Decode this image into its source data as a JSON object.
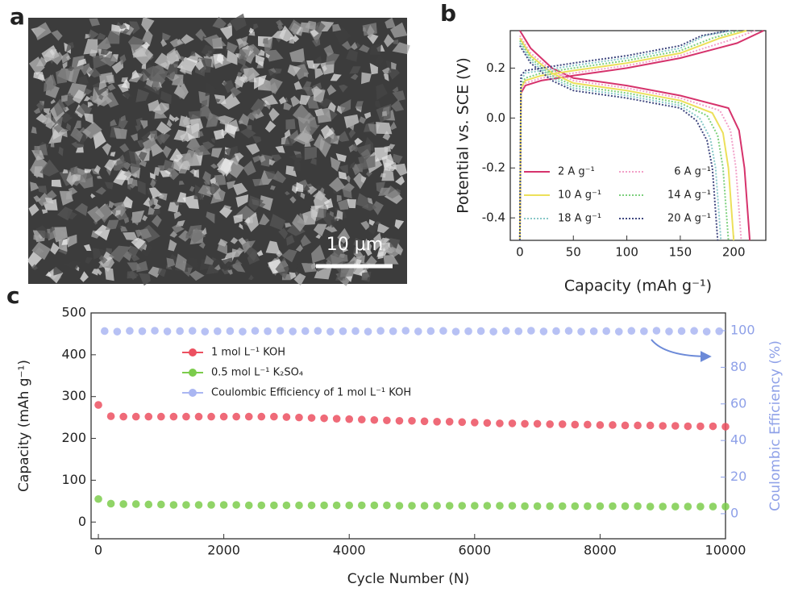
{
  "chart_data": [
    {
      "type": "image",
      "panel_label": "a",
      "scale_bar": "10 μm"
    },
    {
      "type": "line",
      "panel_label": "b",
      "xlabel": "Capacity (mAh g⁻¹)",
      "ylabel": "Potential vs. SCE (V)",
      "xlim": [
        -9,
        230
      ],
      "ylim": [
        -0.49,
        0.35
      ],
      "xticks": [
        0,
        50,
        100,
        150,
        200
      ],
      "yticks": [
        -0.4,
        -0.2,
        {
          "value": 0,
          "label": "0.0"
        },
        0.2
      ],
      "legend": "lower center",
      "series": [
        {
          "name": "2 A g⁻¹",
          "color": "#d6336c",
          "linestyle": "solid",
          "x": [
            0,
            1,
            5,
            20,
            50,
            100,
            150,
            203,
            228,
            null,
            0,
            10,
            30,
            50,
            100,
            150,
            195,
            205,
            210,
            215
          ],
          "values": [
            -0.49,
            0.1,
            0.13,
            0.15,
            0.17,
            0.2,
            0.24,
            0.3,
            0.35,
            null,
            0.35,
            0.28,
            0.2,
            0.16,
            0.13,
            0.09,
            0.04,
            -0.05,
            -0.2,
            -0.49
          ]
        },
        {
          "name": "6 A g⁻¹",
          "color": "#f2a0c8",
          "linestyle": "dotted",
          "x": [
            0,
            1,
            5,
            20,
            50,
            100,
            150,
            195,
            220,
            null,
            0,
            10,
            30,
            50,
            100,
            150,
            187,
            197,
            202,
            207
          ],
          "values": [
            -0.49,
            0.11,
            0.14,
            0.16,
            0.18,
            0.21,
            0.25,
            0.31,
            0.35,
            null,
            0.33,
            0.26,
            0.19,
            0.15,
            0.12,
            0.08,
            0.03,
            -0.05,
            -0.2,
            -0.49
          ]
        },
        {
          "name": "10 A g⁻¹",
          "color": "#ece05a",
          "linestyle": "solid",
          "x": [
            0,
            1,
            5,
            20,
            50,
            100,
            150,
            187,
            212,
            null,
            0,
            10,
            30,
            50,
            100,
            150,
            180,
            190,
            195,
            200
          ],
          "values": [
            -0.49,
            0.12,
            0.15,
            0.17,
            0.19,
            0.22,
            0.26,
            0.32,
            0.35,
            null,
            0.32,
            0.25,
            0.18,
            0.14,
            0.11,
            0.07,
            0.02,
            -0.06,
            -0.2,
            -0.49
          ]
        },
        {
          "name": "14 A g⁻¹",
          "color": "#7ed07e",
          "linestyle": "dotted",
          "x": [
            0,
            1,
            5,
            20,
            50,
            100,
            150,
            180,
            205,
            null,
            0,
            10,
            30,
            50,
            100,
            150,
            175,
            185,
            190,
            195
          ],
          "values": [
            -0.49,
            0.13,
            0.16,
            0.18,
            0.2,
            0.23,
            0.27,
            0.32,
            0.35,
            null,
            0.31,
            0.24,
            0.17,
            0.13,
            0.1,
            0.06,
            0.01,
            -0.07,
            -0.2,
            -0.49
          ]
        },
        {
          "name": "18 A g⁻¹",
          "color": "#88c8c8",
          "linestyle": "dotted",
          "x": [
            0,
            1,
            5,
            20,
            50,
            100,
            150,
            173,
            198,
            null,
            0,
            10,
            30,
            50,
            100,
            150,
            168,
            178,
            183,
            188
          ],
          "values": [
            -0.49,
            0.15,
            0.18,
            0.19,
            0.21,
            0.24,
            0.28,
            0.33,
            0.35,
            null,
            0.3,
            0.23,
            0.16,
            0.12,
            0.09,
            0.05,
            0.0,
            -0.08,
            -0.2,
            -0.49
          ]
        },
        {
          "name": "20 A g⁻¹",
          "color": "#404880",
          "linestyle": "dotted",
          "x": [
            0,
            1,
            5,
            20,
            50,
            100,
            150,
            170,
            195,
            null,
            0,
            10,
            30,
            50,
            100,
            150,
            165,
            175,
            180,
            185
          ],
          "values": [
            -0.49,
            0.17,
            0.19,
            0.2,
            0.22,
            0.25,
            0.29,
            0.33,
            0.35,
            null,
            0.29,
            0.22,
            0.15,
            0.11,
            0.08,
            0.04,
            -0.01,
            -0.09,
            -0.2,
            -0.49
          ]
        }
      ]
    },
    {
      "type": "scatter",
      "panel_label": "c",
      "xlabel": "Cycle Number (N)",
      "ylabel": "Capacity (mAh g⁻¹)",
      "y2label": "Coulombic Efficiency (%)",
      "xlim": [
        -116,
        10000
      ],
      "ylim": [
        -40,
        500
      ],
      "y2lim": [
        -13.7,
        109.7
      ],
      "xticks": [
        0,
        2000,
        4000,
        6000,
        8000,
        10000
      ],
      "yticks": [
        0,
        100,
        200,
        300,
        400,
        500
      ],
      "y2ticks": [
        0,
        20,
        40,
        60,
        80,
        100
      ],
      "y2_color": "#8ea0e8",
      "legend": "upper left",
      "series": [
        {
          "name": "1 mol L⁻¹ KOH",
          "color": "#ec5060",
          "x": [
            0,
            200,
            400,
            600,
            800,
            1000,
            1200,
            1400,
            1600,
            1800,
            2000,
            2200,
            2400,
            2600,
            2800,
            3000,
            3200,
            3400,
            3600,
            3800,
            4000,
            4200,
            4400,
            4600,
            4800,
            5000,
            5200,
            5400,
            5600,
            5800,
            6000,
            6200,
            6400,
            6600,
            6800,
            7000,
            7200,
            7400,
            7600,
            7800,
            8000,
            8200,
            8400,
            8600,
            8800,
            9000,
            9200,
            9400,
            9600,
            9800,
            10000
          ],
          "values": [
            280,
            253,
            252,
            252,
            252,
            252,
            252,
            252,
            252,
            252,
            252,
            252,
            252,
            252,
            252,
            251,
            250,
            249,
            248,
            247,
            246,
            245,
            244,
            243,
            242,
            242,
            241,
            240,
            240,
            239,
            238,
            237,
            236,
            236,
            235,
            235,
            234,
            234,
            233,
            233,
            232,
            232,
            231,
            231,
            231,
            230,
            230,
            229,
            229,
            229,
            228
          ]
        },
        {
          "name": "0.5 mol L⁻¹ K₂SO₄",
          "color": "#7ccc4c",
          "x": [
            0,
            200,
            400,
            600,
            800,
            1000,
            1200,
            1400,
            1600,
            1800,
            2000,
            2200,
            2400,
            2600,
            2800,
            3000,
            3200,
            3400,
            3600,
            3800,
            4000,
            4200,
            4400,
            4600,
            4800,
            5000,
            5200,
            5400,
            5600,
            5800,
            6000,
            6200,
            6400,
            6600,
            6800,
            7000,
            7200,
            7400,
            7600,
            7800,
            8000,
            8200,
            8400,
            8600,
            8800,
            9000,
            9200,
            9400,
            9600,
            9800,
            10000
          ],
          "values": [
            55,
            44,
            43,
            43,
            42,
            42,
            41,
            41,
            41,
            41,
            41,
            41,
            40,
            40,
            40,
            40,
            40,
            40,
            40,
            40,
            40,
            40,
            40,
            40,
            39,
            39,
            39,
            39,
            39,
            39,
            39,
            39,
            39,
            39,
            38,
            38,
            38,
            38,
            38,
            38,
            38,
            38,
            38,
            38,
            37,
            37,
            37,
            37,
            37,
            37,
            37
          ]
        },
        {
          "name": "Coulombic Efficiency of 1 mol L⁻¹ KOH",
          "color": "#aab6f2",
          "axis": "y2",
          "x": [
            100,
            300,
            500,
            700,
            900,
            1100,
            1300,
            1500,
            1700,
            1900,
            2100,
            2300,
            2500,
            2700,
            2900,
            3100,
            3300,
            3500,
            3700,
            3900,
            4100,
            4300,
            4500,
            4700,
            4900,
            5100,
            5300,
            5500,
            5700,
            5900,
            6100,
            6300,
            6500,
            6700,
            6900,
            7100,
            7300,
            7500,
            7700,
            7900,
            8100,
            8300,
            8500,
            8700,
            8900,
            9100,
            9300,
            9500,
            9700,
            9900
          ],
          "values": [
            99.8,
            99.5,
            99.9,
            99.7,
            100,
            99.6,
            99.8,
            99.9,
            99.5,
            99.7,
            99.8,
            99.5,
            99.9,
            99.7,
            100,
            99.6,
            99.8,
            99.9,
            99.5,
            99.7,
            99.8,
            99.5,
            99.9,
            99.7,
            100,
            99.6,
            99.8,
            99.9,
            99.5,
            99.7,
            99.8,
            99.5,
            99.9,
            99.7,
            100,
            99.6,
            99.8,
            99.9,
            99.5,
            99.7,
            99.8,
            99.5,
            99.9,
            99.7,
            100,
            99.6,
            99.8,
            99.9,
            99.5,
            99.7
          ]
        }
      ]
    }
  ]
}
